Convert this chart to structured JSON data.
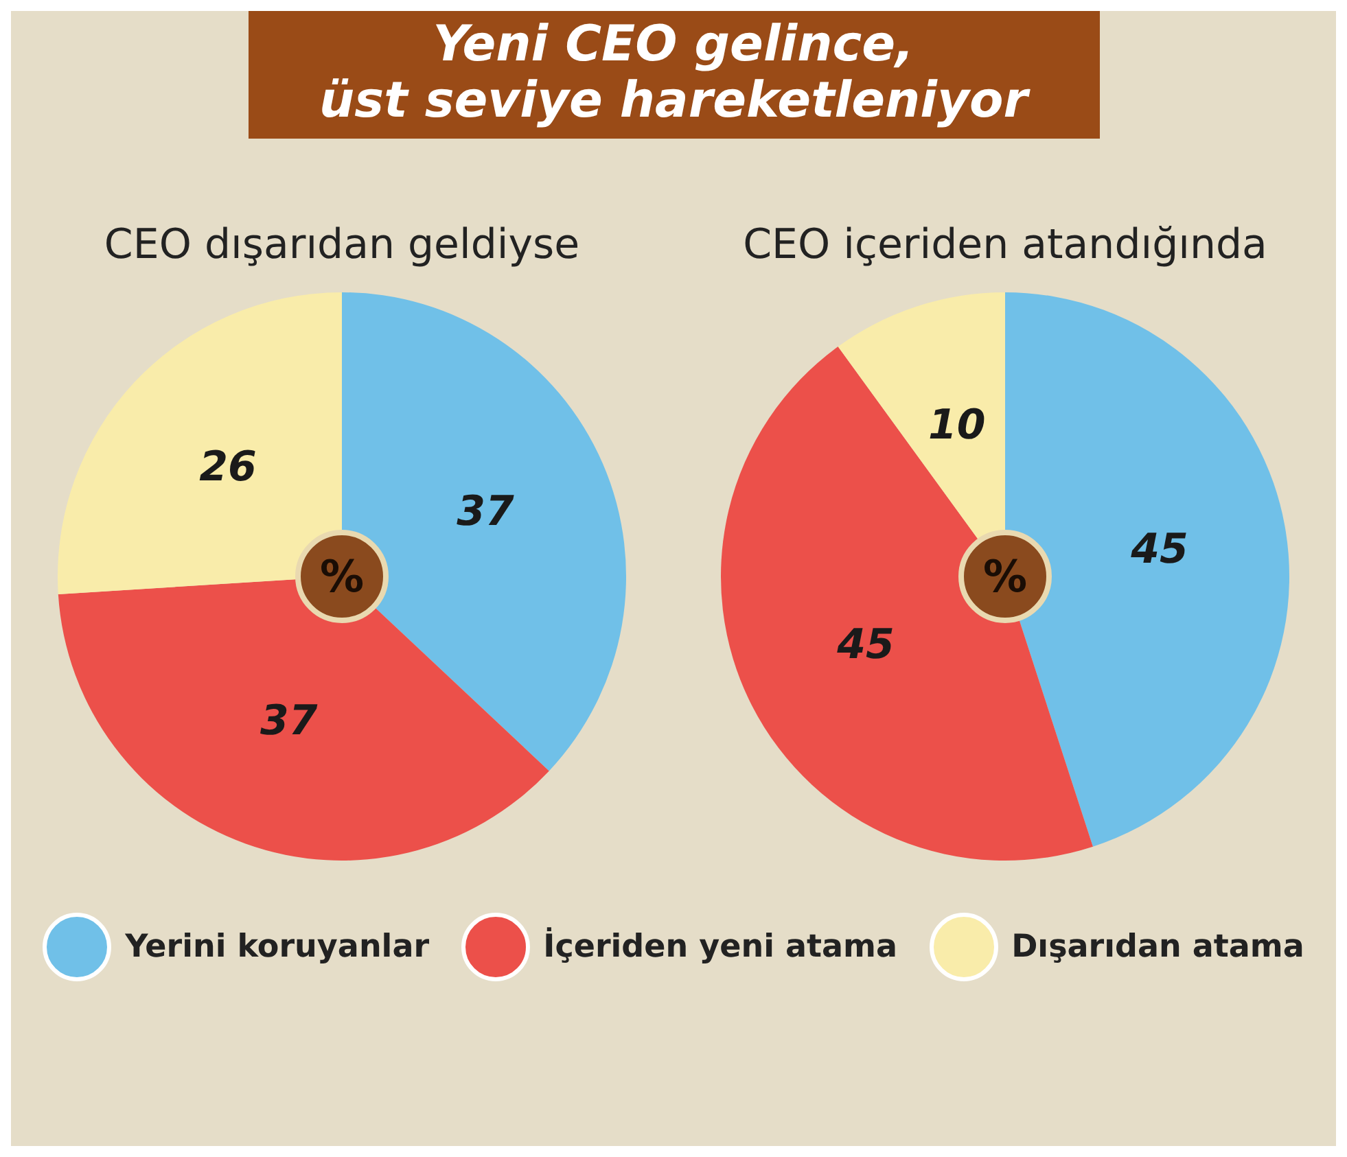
{
  "chart_data": [
    {
      "type": "pie",
      "title": "Yeni CEO gelince,\nüst seviye hareketleniyor",
      "subtitle": "CEO dışarıdan geldiyse",
      "categories": [
        "Yerini koruyanlar",
        "İçeriden yeni atama",
        "Dışarıdan atama"
      ],
      "values": [
        37,
        37,
        26
      ],
      "colors": [
        "#70c0e8",
        "#ec504a",
        "#f9ecaa"
      ],
      "data_labels": true,
      "legend": "bottom",
      "annotations": [
        "%"
      ]
    },
    {
      "type": "pie",
      "subtitle": "CEO içeriden atandığında",
      "categories": [
        null,
        null,
        null
      ],
      "values": [
        45,
        45,
        10
      ],
      "colors": [
        "#70c0e8",
        "#ec504a",
        "#f9ecaa"
      ],
      "data_labels": true,
      "annotations": [
        "%"
      ]
    }
  ]
}
